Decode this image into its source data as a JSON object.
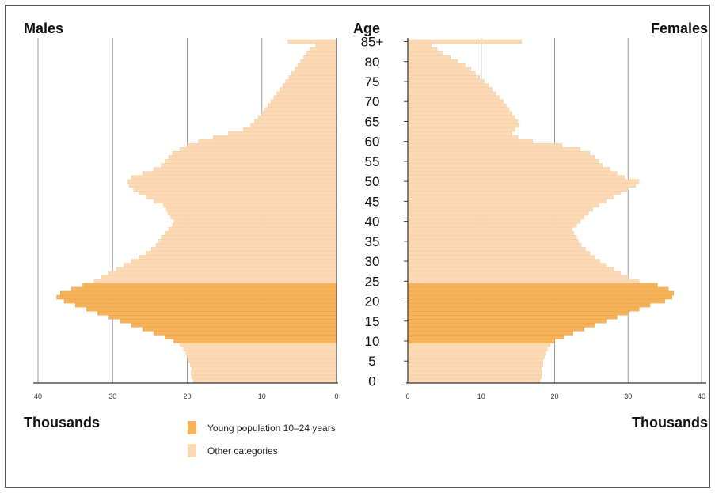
{
  "chart_data": {
    "type": "bar",
    "title": "",
    "left_label": "Males",
    "right_label": "Females",
    "center_label": "Age",
    "left_axis_label": "Thousands",
    "right_axis_label": "Thousands",
    "x_ticks": [
      "40",
      "30",
      "20",
      "10",
      "0"
    ],
    "x_ticks_right": [
      "0",
      "10",
      "20",
      "30",
      "40"
    ],
    "xlim": [
      0,
      40
    ],
    "age_labels": [
      "85+",
      "80",
      "75",
      "70",
      "65",
      "60",
      "55",
      "50",
      "45",
      "40",
      "35",
      "30",
      "25",
      "20",
      "15",
      "10",
      "5",
      "0"
    ],
    "ages": [
      0,
      1,
      2,
      3,
      4,
      5,
      6,
      7,
      8,
      9,
      10,
      11,
      12,
      13,
      14,
      15,
      16,
      17,
      18,
      19,
      20,
      21,
      22,
      23,
      24,
      25,
      26,
      27,
      28,
      29,
      30,
      31,
      32,
      33,
      34,
      35,
      36,
      37,
      38,
      39,
      40,
      41,
      42,
      43,
      44,
      45,
      46,
      47,
      48,
      49,
      50,
      51,
      52,
      53,
      54,
      55,
      56,
      57,
      58,
      59,
      60,
      61,
      62,
      63,
      64,
      65,
      66,
      67,
      68,
      69,
      70,
      71,
      72,
      73,
      74,
      75,
      76,
      77,
      78,
      79,
      80,
      81,
      82,
      83,
      84,
      85
    ],
    "grid": true,
    "colors": {
      "young": "#f7b35a",
      "other": "#fad9b4",
      "grid": "#9a9a9a"
    },
    "highlight_range": [
      10,
      24
    ],
    "series": [
      {
        "name": "Males",
        "values": [
          19.2,
          19.4,
          19.5,
          19.4,
          19.6,
          19.8,
          20.0,
          20.2,
          20.5,
          21.0,
          21.8,
          23.0,
          24.5,
          26.0,
          27.5,
          29.0,
          30.5,
          32.0,
          33.5,
          35.0,
          36.5,
          37.5,
          37.0,
          35.5,
          34.0,
          32.5,
          31.5,
          30.5,
          29.5,
          28.5,
          27.5,
          26.5,
          25.5,
          24.8,
          24.2,
          23.8,
          23.5,
          23.0,
          22.5,
          22.0,
          21.8,
          22.2,
          22.6,
          22.8,
          23.2,
          24.5,
          25.5,
          26.5,
          27.2,
          27.8,
          28.0,
          27.5,
          26.0,
          24.5,
          23.5,
          23.0,
          22.5,
          22.0,
          21.0,
          20.0,
          18.5,
          16.5,
          14.5,
          12.5,
          11.5,
          11.0,
          10.5,
          10.0,
          9.6,
          9.2,
          8.8,
          8.4,
          8.0,
          7.6,
          7.2,
          6.8,
          6.4,
          6.0,
          5.6,
          5.2,
          4.8,
          4.4,
          4.0,
          3.5,
          2.8,
          6.5
        ]
      },
      {
        "name": "Females",
        "values": [
          18.0,
          18.2,
          18.3,
          18.2,
          18.4,
          18.4,
          18.6,
          18.8,
          19.0,
          19.4,
          20.0,
          21.2,
          22.5,
          24.0,
          25.5,
          27.0,
          28.5,
          30.0,
          31.5,
          33.0,
          35.0,
          36.0,
          36.2,
          35.5,
          34.0,
          31.5,
          30.0,
          29.0,
          28.0,
          27.0,
          26.2,
          25.5,
          24.8,
          24.2,
          23.6,
          23.2,
          23.0,
          22.6,
          22.4,
          23.0,
          23.5,
          24.0,
          24.6,
          25.2,
          26.0,
          27.0,
          28.0,
          29.0,
          30.0,
          31.0,
          31.5,
          29.5,
          28.5,
          27.5,
          26.5,
          26.0,
          25.5,
          24.8,
          23.5,
          21.0,
          17.0,
          15.0,
          14.2,
          14.6,
          15.2,
          15.0,
          14.6,
          14.2,
          13.8,
          13.4,
          13.0,
          12.5,
          12.0,
          11.5,
          11.0,
          10.4,
          9.8,
          9.2,
          8.6,
          7.8,
          6.8,
          5.8,
          4.8,
          4.0,
          3.2,
          15.5
        ]
      }
    ],
    "legend": [
      {
        "key": "young",
        "label": "Young population 10–24 years"
      },
      {
        "key": "other",
        "label": "Other categories"
      }
    ]
  }
}
